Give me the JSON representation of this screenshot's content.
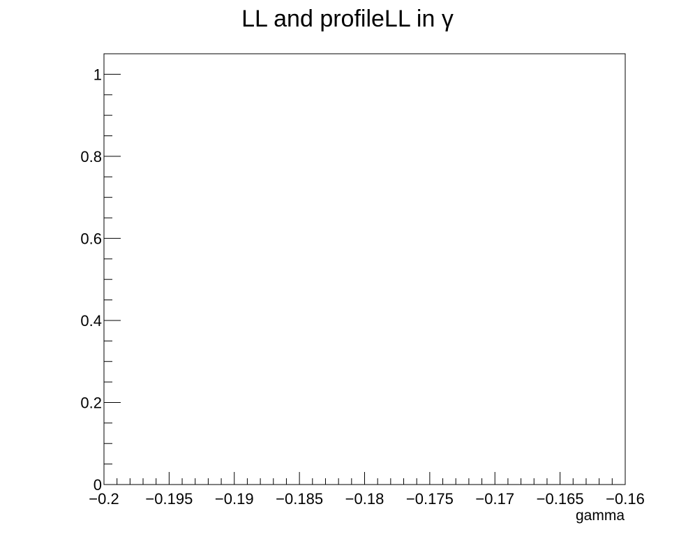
{
  "chart_data": {
    "type": "line",
    "title": "LL and profileLL in γ",
    "xlabel": "gamma",
    "ylabel": "",
    "xlim": [
      -0.2,
      -0.16
    ],
    "ylim": [
      0,
      1.05
    ],
    "x_major_ticks": [
      -0.2,
      -0.195,
      -0.19,
      -0.185,
      -0.18,
      -0.175,
      -0.17,
      -0.165,
      -0.16
    ],
    "x_tick_labels": [
      "−0.2",
      "−0.195",
      "−0.19",
      "−0.185",
      "−0.18",
      "−0.175",
      "−0.17",
      "−0.165",
      "−0.16"
    ],
    "x_minor_step": 0.001,
    "y_major_ticks": [
      0,
      0.2,
      0.4,
      0.6,
      0.8,
      1
    ],
    "y_tick_labels": [
      "0",
      "0.2",
      "0.4",
      "0.6",
      "0.8",
      "1"
    ],
    "y_minor_step": 0.05,
    "grid": false,
    "series": []
  }
}
